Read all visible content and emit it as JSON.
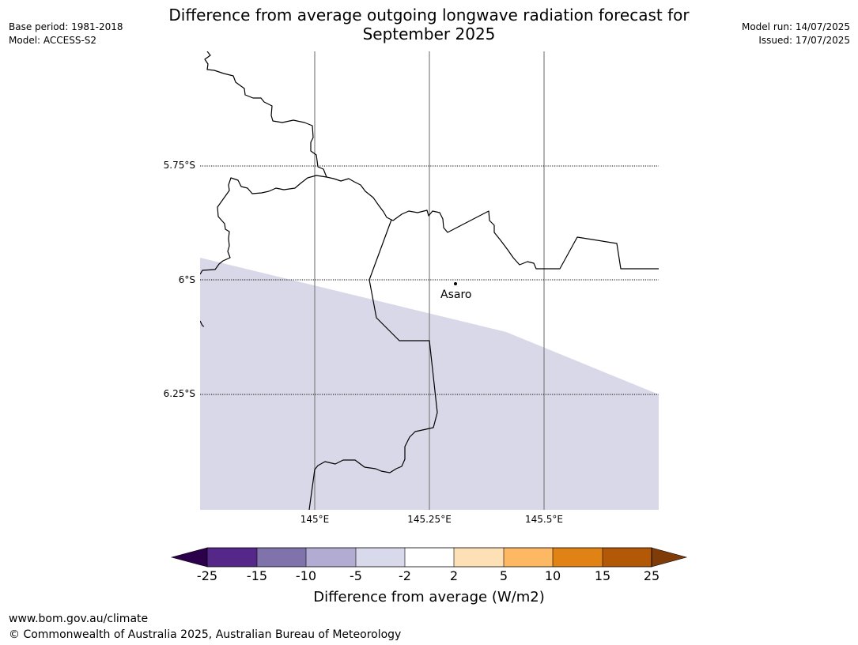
{
  "header": {
    "title_line1": "Difference from average outgoing longwave radiation forecast for",
    "title_line2": "September 2025",
    "base_period": "Base period: 1981-2018",
    "model": "Model: ACCESS-S2",
    "model_run": "Model run: 14/07/2025",
    "issued": "Issued: 17/07/2025"
  },
  "map": {
    "lat_labels": [
      "5.75°S",
      "6°S",
      "6.25°S"
    ],
    "lon_labels": [
      "145°E",
      "145.25°E",
      "145.5°E"
    ],
    "place": {
      "name": "Asaro",
      "lon": 145.3,
      "lat": -6.01
    },
    "colors": {
      "anomaly_fill": "#d8d8e8",
      "gridline_lon": "#808080",
      "coastline": "#000000"
    },
    "shaded_class": "-5 to -2"
  },
  "colorbar": {
    "tick_labels": [
      "-25",
      "-15",
      "-10",
      "-5",
      "-2",
      "2",
      "5",
      "10",
      "15",
      "25"
    ],
    "label": "Difference from average (W/m2)",
    "colors": {
      "below_min": "#2d004b",
      "bins": [
        "#542788",
        "#8073ac",
        "#b2abd2",
        "#d8daeb",
        "#ffffff",
        "#fee0b6",
        "#fdb863",
        "#e08214",
        "#b35806"
      ],
      "above_max": "#7f3b08"
    }
  },
  "footer": {
    "url": "www.bom.gov.au/climate",
    "copyright": "© Commonwealth of Australia 2025, Australian Bureau of Meteorology"
  }
}
